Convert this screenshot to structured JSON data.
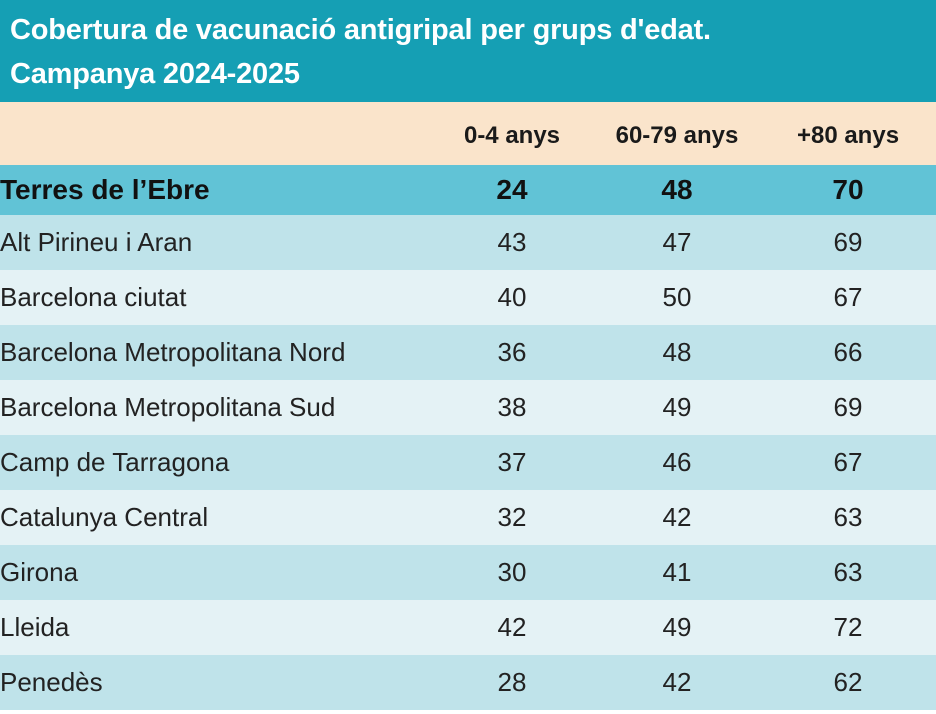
{
  "chart_data": {
    "type": "table",
    "title_lines": [
      "Cobertura de vacunació antigripal per grups d'edat.",
      "Campanya 2024-2025"
    ],
    "columns": [
      "",
      "0-4 anys",
      "60-79 anys",
      "+80 anys"
    ],
    "highlight_row": {
      "name": "Terres de l’Ebre",
      "values": [
        "24",
        "48",
        "70"
      ]
    },
    "rows": [
      {
        "name": "Alt Pirineu i Aran",
        "values": [
          "43",
          "47",
          "69"
        ]
      },
      {
        "name": "Barcelona ciutat",
        "values": [
          "40",
          "50",
          "67"
        ]
      },
      {
        "name": "Barcelona Metropolitana Nord",
        "values": [
          "36",
          "48",
          "66"
        ]
      },
      {
        "name": "Barcelona Metropolitana Sud",
        "values": [
          "38",
          "49",
          "69"
        ]
      },
      {
        "name": "Camp de Tarragona",
        "values": [
          "37",
          "46",
          "67"
        ]
      },
      {
        "name": "Catalunya Central",
        "values": [
          "32",
          "42",
          "63"
        ]
      },
      {
        "name": "Girona",
        "values": [
          "30",
          "41",
          "63"
        ]
      },
      {
        "name": "Lleida",
        "values": [
          "42",
          "49",
          "72"
        ]
      },
      {
        "name": "Penedès",
        "values": [
          "28",
          "42",
          "62"
        ]
      }
    ]
  },
  "colors": {
    "title_background": "#159fb4",
    "header_background": "#fae4cb",
    "highlight_background": "#61c3d6",
    "row_dark": "#bfe3ea",
    "row_light": "#e4f2f5"
  }
}
